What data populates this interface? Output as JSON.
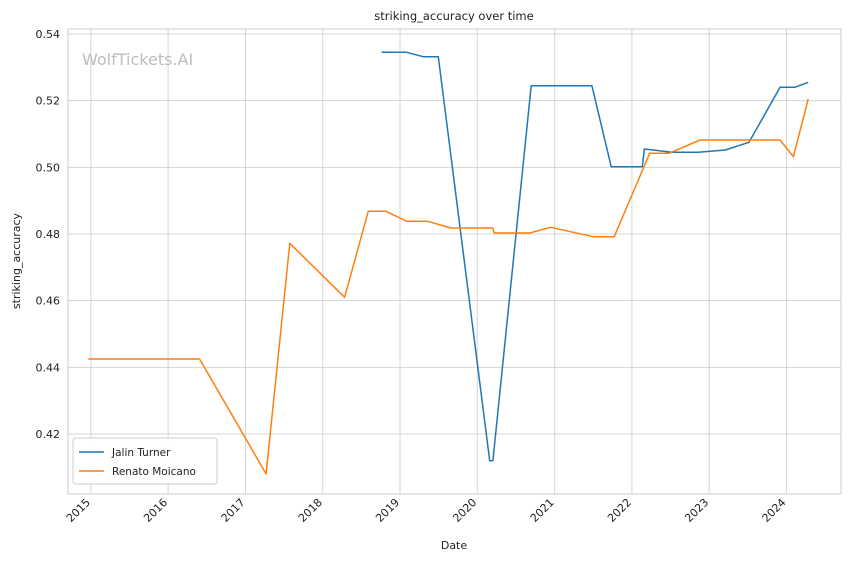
{
  "chart_data": {
    "type": "line",
    "title": "striking_accuracy over time",
    "xlabel": "Date",
    "ylabel": "striking_accuracy",
    "watermark": "WolfTickets.AI",
    "x_ticks": [
      "2015",
      "2016",
      "2017",
      "2018",
      "2019",
      "2020",
      "2021",
      "2022",
      "2023",
      "2024"
    ],
    "y_ticks": [
      "0.42",
      "0.44",
      "0.46",
      "0.48",
      "0.50",
      "0.52",
      "0.54"
    ],
    "xlim": [
      "2014-09-15",
      "2024-09-15"
    ],
    "ylim": [
      0.402,
      0.5415
    ],
    "grid": true,
    "legend_position": "lower-left",
    "series": [
      {
        "name": "Jalin Turner",
        "color": "#1f77b4",
        "points": [
          [
            "2018-10-06",
            0.5345
          ],
          [
            "2019-02-01",
            0.5345
          ],
          [
            "2019-04-20",
            0.5332
          ],
          [
            "2019-07-01",
            0.5332
          ],
          [
            "2020-02-29",
            0.412
          ],
          [
            "2020-03-15",
            0.412
          ],
          [
            "2020-09-12",
            0.5245
          ],
          [
            "2021-06-26",
            0.5245
          ],
          [
            "2021-09-25",
            0.5002
          ],
          [
            "2022-02-19",
            0.5002
          ],
          [
            "2022-03-01",
            0.5055
          ],
          [
            "2022-07-09",
            0.5045
          ],
          [
            "2022-11-12",
            0.5045
          ],
          [
            "2023-03-18",
            0.5052
          ],
          [
            "2023-07-08",
            0.5075
          ],
          [
            "2023-12-02",
            0.524
          ],
          [
            "2024-02-10",
            0.524
          ],
          [
            "2024-04-13",
            0.5255
          ]
        ]
      },
      {
        "name": "Renato Moicano",
        "color": "#ff7f0e",
        "points": [
          [
            "2014-12-20",
            0.4425
          ],
          [
            "2016-05-29",
            0.4425
          ],
          [
            "2017-04-08",
            0.408
          ],
          [
            "2017-07-29",
            0.4772
          ],
          [
            "2018-04-14",
            0.461
          ],
          [
            "2018-08-04",
            0.4868
          ],
          [
            "2018-10-27",
            0.4868
          ],
          [
            "2019-02-02",
            0.4838
          ],
          [
            "2019-05-11",
            0.4838
          ],
          [
            "2019-08-31",
            0.4818
          ],
          [
            "2020-03-14",
            0.4818
          ],
          [
            "2020-03-21",
            0.4803
          ],
          [
            "2020-09-05",
            0.4803
          ],
          [
            "2020-12-12",
            0.482
          ],
          [
            "2021-07-03",
            0.4792
          ],
          [
            "2021-10-09",
            0.4792
          ],
          [
            "2022-03-26",
            0.5042
          ],
          [
            "2022-06-25",
            0.5042
          ],
          [
            "2022-11-19",
            0.5082
          ],
          [
            "2023-04-15",
            0.5082
          ],
          [
            "2023-12-02",
            0.5082
          ],
          [
            "2024-02-03",
            0.5032
          ],
          [
            "2024-04-13",
            0.5205
          ]
        ]
      }
    ]
  }
}
